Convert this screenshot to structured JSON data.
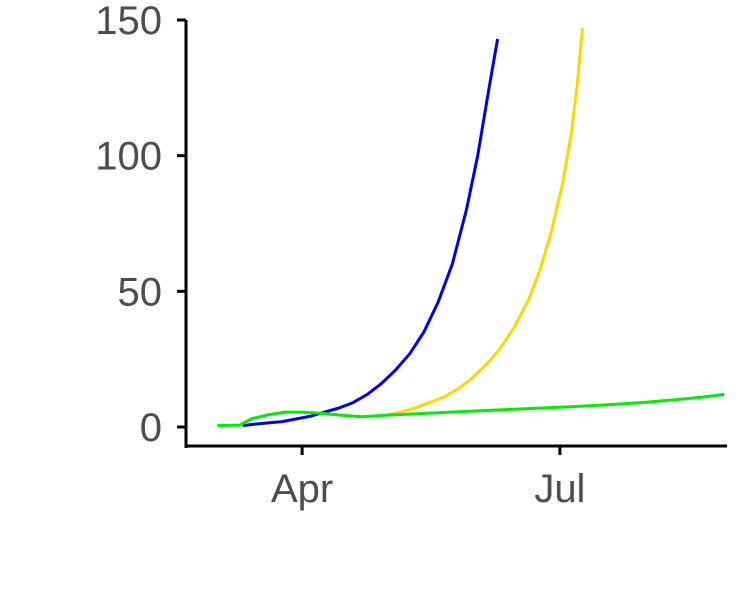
{
  "chart_data": {
    "type": "line",
    "x_axis": {
      "kind": "date",
      "range": [
        "2020-02-20",
        "2020-08-29"
      ],
      "ticks": [
        {
          "value": "2020-04-01",
          "label": "Apr"
        },
        {
          "value": "2020-07-01",
          "label": "Jul"
        }
      ]
    },
    "y_axis": {
      "range": [
        -7,
        150
      ],
      "ticks": [
        {
          "value": 0,
          "label": "0"
        },
        {
          "value": 50,
          "label": "50"
        },
        {
          "value": 100,
          "label": "100"
        },
        {
          "value": 150,
          "label": "150"
        }
      ]
    },
    "grid": false,
    "legend": "none",
    "series": [
      {
        "color": "#0000ee",
        "points": [
          [
            "2020-03-11",
            0.5
          ],
          [
            "2020-03-15",
            1
          ],
          [
            "2020-03-20",
            1.5
          ],
          [
            "2020-03-25",
            2
          ],
          [
            "2020-03-30",
            3
          ],
          [
            "2020-04-04",
            4
          ],
          [
            "2020-04-09",
            5.5
          ],
          [
            "2020-04-14",
            7
          ],
          [
            "2020-04-19",
            9
          ],
          [
            "2020-04-24",
            12
          ],
          [
            "2020-04-29",
            16
          ],
          [
            "2020-05-04",
            21
          ],
          [
            "2020-05-09",
            27
          ],
          [
            "2020-05-14",
            35
          ],
          [
            "2020-05-19",
            46
          ],
          [
            "2020-05-24",
            60
          ],
          [
            "2020-05-29",
            80
          ],
          [
            "2020-06-02",
            100
          ],
          [
            "2020-06-06",
            125
          ],
          [
            "2020-06-09",
            143
          ]
        ]
      },
      {
        "color": "#ffd700",
        "points": [
          [
            "2020-05-01",
            4.5
          ],
          [
            "2020-05-06",
            5.5
          ],
          [
            "2020-05-11",
            7
          ],
          [
            "2020-05-16",
            9
          ],
          [
            "2020-05-21",
            11
          ],
          [
            "2020-05-26",
            14
          ],
          [
            "2020-05-31",
            18
          ],
          [
            "2020-06-05",
            23
          ],
          [
            "2020-06-10",
            29
          ],
          [
            "2020-06-15",
            37
          ],
          [
            "2020-06-20",
            47
          ],
          [
            "2020-06-24",
            58
          ],
          [
            "2020-06-28",
            72
          ],
          [
            "2020-07-02",
            90
          ],
          [
            "2020-07-05",
            108
          ],
          [
            "2020-07-07",
            125
          ],
          [
            "2020-07-09",
            147
          ]
        ]
      },
      {
        "color": "#00ee00",
        "points": [
          [
            "2020-03-02",
            0.5
          ],
          [
            "2020-03-10",
            0.7
          ],
          [
            "2020-03-14",
            3
          ],
          [
            "2020-03-20",
            4.5
          ],
          [
            "2020-03-26",
            5.5
          ],
          [
            "2020-04-01",
            5.5
          ],
          [
            "2020-04-08",
            5
          ],
          [
            "2020-04-15",
            4.3
          ],
          [
            "2020-04-22",
            3.8
          ],
          [
            "2020-04-30",
            4.3
          ],
          [
            "2020-05-10",
            4.8
          ],
          [
            "2020-05-20",
            5.3
          ],
          [
            "2020-05-30",
            5.8
          ],
          [
            "2020-06-10",
            6.3
          ],
          [
            "2020-06-20",
            6.8
          ],
          [
            "2020-07-01",
            7.3
          ],
          [
            "2020-07-15",
            8
          ],
          [
            "2020-07-30",
            9
          ],
          [
            "2020-08-10",
            10
          ],
          [
            "2020-08-20",
            11
          ],
          [
            "2020-08-28",
            12
          ]
        ]
      }
    ]
  }
}
